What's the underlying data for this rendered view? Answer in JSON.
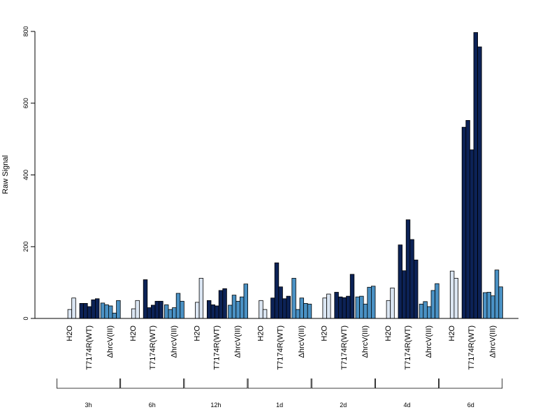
{
  "chart_data": {
    "type": "bar",
    "title": "",
    "xlabel": "",
    "ylabel": "Raw Signal",
    "ylim": [
      0,
      800
    ],
    "yticks": [
      0,
      200,
      400,
      600,
      800
    ],
    "grid": false,
    "legend": "none",
    "colors": {
      "H2O": "#dbe6f3",
      "T7174R(WT)": "#0c2256",
      "ΔhrcV(III)": "#4a91c4"
    },
    "timepoints": [
      "3h",
      "6h",
      "12h",
      "1d",
      "2d",
      "4d",
      "6d"
    ],
    "conditions": [
      "H2O",
      "T7174R(WT)",
      "ΔhrcV(III)"
    ],
    "groups": [
      {
        "time": "3h",
        "values": {
          "H2O": [
            0,
            25,
            57
          ],
          "T7174R(WT)": [
            42,
            42,
            33,
            52,
            55
          ],
          "ΔhrcV(III)": [
            43,
            38,
            35,
            15,
            50
          ]
        }
      },
      {
        "time": "6h",
        "values": {
          "H2O": [
            0,
            27,
            50
          ],
          "T7174R(WT)": [
            108,
            30,
            37,
            48,
            48
          ],
          "ΔhrcV(III)": [
            38,
            25,
            30,
            70,
            48
          ]
        }
      },
      {
        "time": "12h",
        "values": {
          "H2O": [
            0,
            45,
            112
          ],
          "T7174R(WT)": [
            50,
            38,
            35,
            78,
            83
          ],
          "ΔhrcV(III)": [
            37,
            65,
            48,
            60,
            96
          ]
        }
      },
      {
        "time": "1d",
        "values": {
          "H2O": [
            0,
            50,
            25
          ],
          "T7174R(WT)": [
            57,
            155,
            88,
            55,
            62
          ],
          "ΔhrcV(III)": [
            112,
            25,
            57,
            42,
            40
          ]
        }
      },
      {
        "time": "2d",
        "values": {
          "H2O": [
            0,
            57,
            68
          ],
          "T7174R(WT)": [
            73,
            60,
            58,
            62,
            123
          ],
          "ΔhrcV(III)": [
            60,
            62,
            40,
            87,
            90
          ]
        }
      },
      {
        "time": "4d",
        "values": {
          "H2O": [
            0,
            50,
            85
          ],
          "T7174R(WT)": [
            205,
            133,
            275,
            220,
            163
          ],
          "ΔhrcV(III)": [
            40,
            47,
            33,
            78,
            97
          ]
        }
      },
      {
        "time": "6d",
        "values": {
          "H2O": [
            0,
            132,
            112
          ],
          "T7174R(WT)": [
            533,
            552,
            470,
            797,
            757
          ],
          "ΔhrcV(III)": [
            72,
            73,
            63,
            135,
            88
          ]
        }
      }
    ]
  }
}
